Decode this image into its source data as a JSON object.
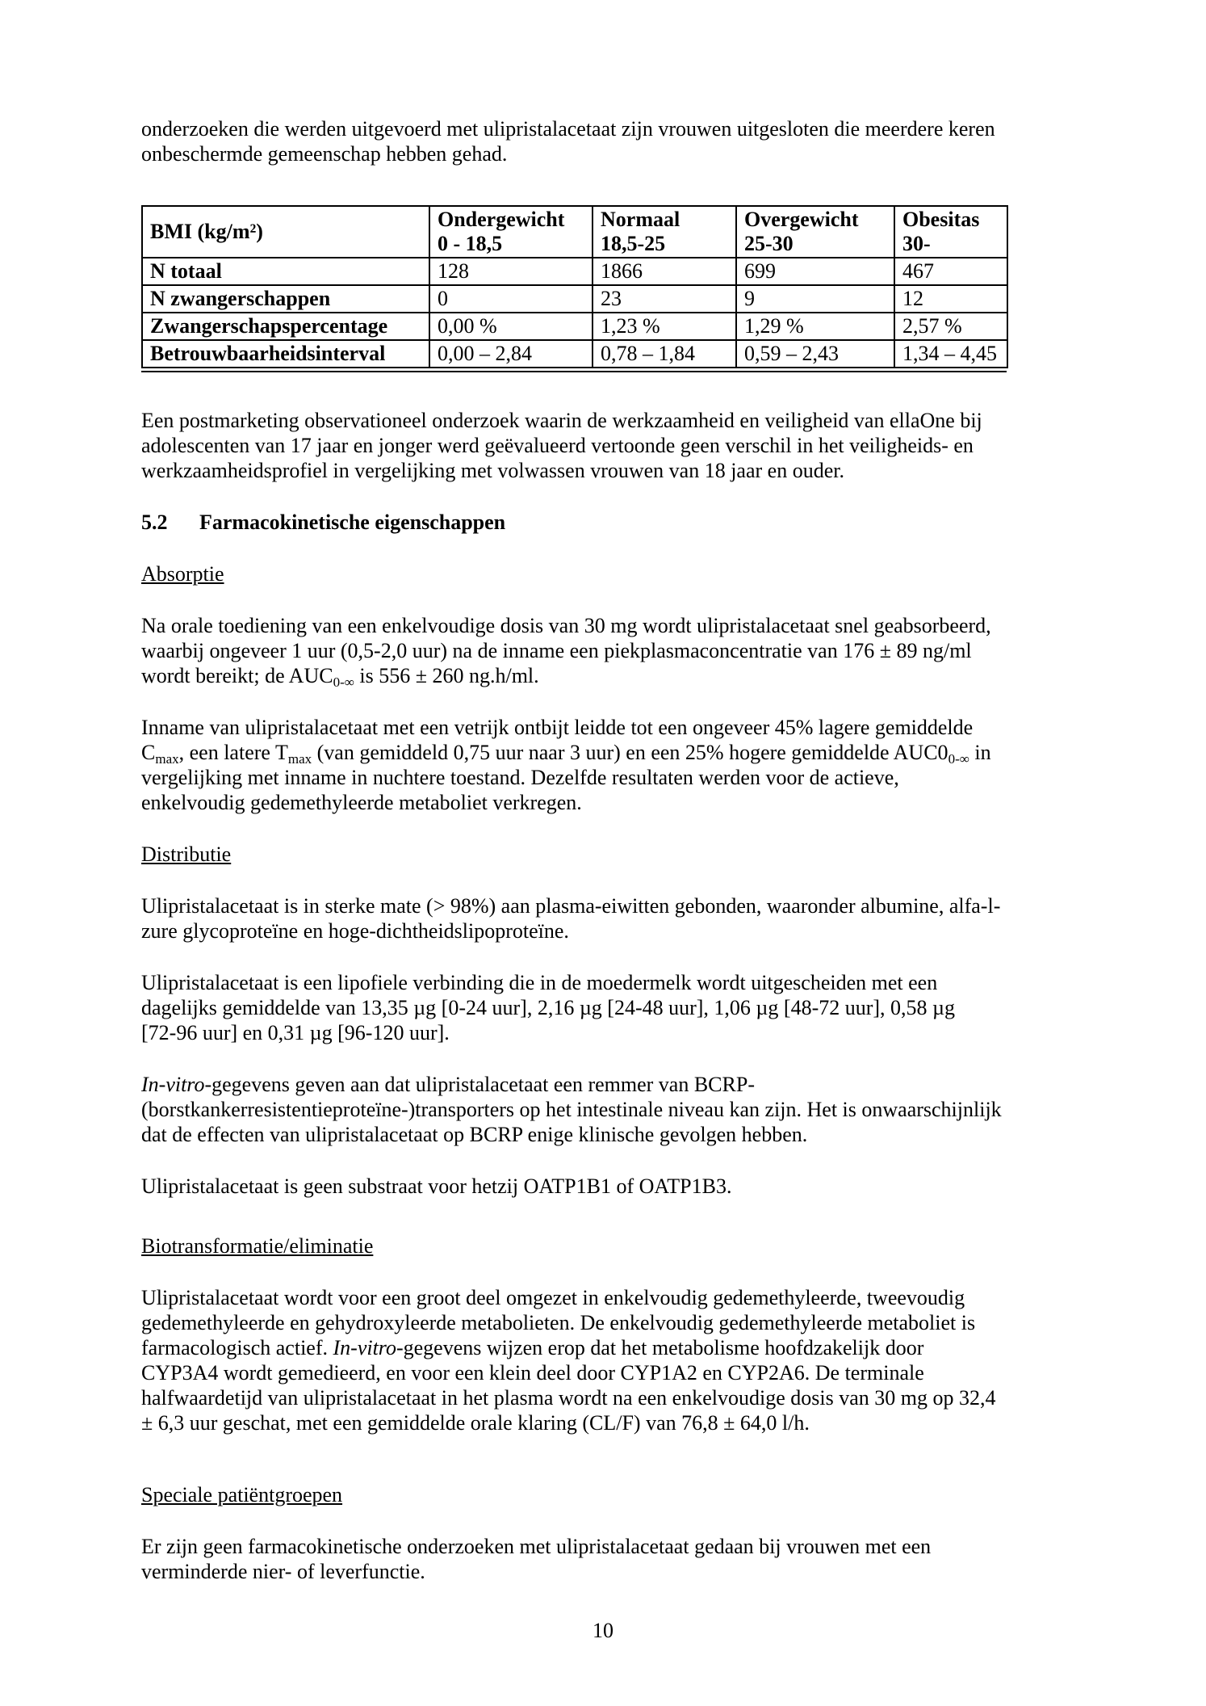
{
  "page": {
    "number": "10"
  },
  "intro": {
    "p1": "onderzoeken die werden uitgevoerd met ulipristalacetaat zijn vrouwen uitgesloten die meerdere keren\nonbeschermde gemeenschap hebben gehad."
  },
  "table": {
    "header": [
      "BMI (kg/m²)",
      "Ondergewicht\n0 - 18,5",
      "Normaal\n18,5-25",
      "Overgewicht\n25-30",
      "Obesitas\n30-"
    ],
    "rows": [
      [
        "N totaal",
        "128",
        "1866",
        "699",
        "467"
      ],
      [
        "N zwangerschappen",
        "0",
        "23",
        "9",
        "12"
      ],
      [
        "Zwangerschapspercentage",
        "0,00 %",
        "1,23 %",
        "1,29 %",
        "2,57 %"
      ],
      [
        "Betrouwbaarheidsinterval",
        "0,00 – 2,84",
        "0,78 – 1,84",
        "0,59 – 2,43",
        "1,34 – 4,45"
      ]
    ]
  },
  "postmarketing": {
    "p1": "Een postmarketing observationeel onderzoek waarin de werkzaamheid en veiligheid van ellaOne bij\nadolescenten van 17 jaar en jonger werd geëvalueerd vertoonde geen verschil in het veiligheids- en\nwerkzaamheidsprofiel in vergelijking met volwassen vrouwen van 18 jaar en ouder."
  },
  "section": {
    "number": "5.2",
    "title": "Farmacokinetische eigenschappen"
  },
  "absorptie": {
    "heading": "Absorptie",
    "p1": [
      {
        "t": "Na orale toediening van een enkelvoudige dosis van 30 mg wordt ulipristalacetaat snel geabsorbeerd,\nwaarbij ongeveer 1 uur (0,5-2,0 uur) na de inname een piekplasmaconcentratie van 176 ± 89 ng/ml\nwordt bereikt; de AUC"
      },
      {
        "s": "sub",
        "t": "0-∞"
      },
      {
        "t": " is 556 ± 260 ng.h/ml."
      }
    ],
    "p2": [
      {
        "t": "Inname van ulipristalacetaat met een vetrijk ontbijt leidde tot een ongeveer 45% lagere gemiddelde\nC"
      },
      {
        "s": "sub",
        "t": "max"
      },
      {
        "t": ", een latere T"
      },
      {
        "s": "sub",
        "t": "max"
      },
      {
        "t": " (van gemiddeld 0,75 uur naar 3 uur) en een 25% hogere gemiddelde AUC0"
      },
      {
        "s": "sub",
        "t": "0-∞"
      },
      {
        "t": " in\nvergelijking met inname in nuchtere toestand. Dezelfde resultaten werden voor de actieve,\nenkelvoudig gedemethyleerde metaboliet verkregen."
      }
    ]
  },
  "distributie": {
    "heading": "Distributie",
    "p1": "Ulipristalacetaat is in sterke mate (> 98%) aan plasma-eiwitten gebonden, waaronder albumine, alfa-l-\nzure glycoproteïne en hoge-dichtheidslipoproteïne.",
    "p2": "Ulipristalacetaat is een lipofiele verbinding die in de moedermelk wordt uitgescheiden met een\ndagelijks gemiddelde van 13,35 µg [0-24 uur], 2,16 µg [24-48 uur], 1,06 µg [48-72 uur], 0,58 µg\n[72-96 uur] en 0,31 µg [96-120 uur].",
    "p3": [
      {
        "s": "italic",
        "t": "In-vitro"
      },
      {
        "t": "-gegevens geven aan dat ulipristalacetaat een remmer van BCRP-\n(borstkankerresistentieproteïne-)transporters op het intestinale niveau kan zijn. Het is onwaarschijnlijk\ndat de effecten van ulipristalacetaat op BCRP enige klinische gevolgen hebben."
      }
    ],
    "p4": "Ulipristalacetaat is geen substraat voor hetzij OATP1B1 of OATP1B3."
  },
  "biotransformatie": {
    "heading": "Biotransformatie/eliminatie",
    "p1": [
      {
        "t": "Ulipristalacetaat wordt voor een groot deel omgezet in enkelvoudig gedemethyleerde, tweevoudig\ngedemethyleerde en gehydroxyleerde metabolieten. De enkelvoudig gedemethyleerde metaboliet is\nfarmacologisch actief. "
      },
      {
        "s": "italic",
        "t": "In-vitro"
      },
      {
        "t": "-gegevens wijzen erop dat het metabolisme hoofdzakelijk door\nCYP3A4 wordt gemedieerd, en voor een klein deel door CYP1A2 en CYP2A6. De terminale\nhalfwaardetijd van ulipristalacetaat in het plasma wordt na een enkelvoudige dosis van 30 mg op 32,4\n± 6,3 uur geschat, met een gemiddelde orale klaring (CL/F) van 76,8 ± 64,0 l/h."
      }
    ]
  },
  "speciale": {
    "heading": "Speciale patiëntgroepen",
    "p1": "Er zijn geen farmacokinetische onderzoeken met ulipristalacetaat gedaan bij vrouwen met een\nverminderde nier- of leverfunctie."
  }
}
